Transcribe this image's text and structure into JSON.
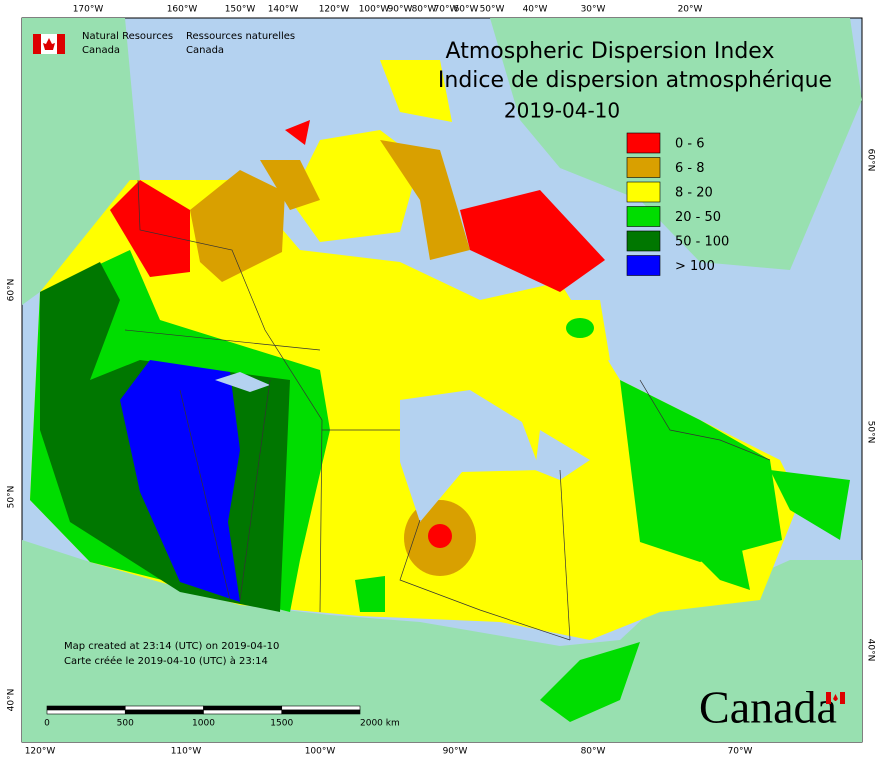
{
  "header": {
    "agency_en_1": "Natural Resources",
    "agency_en_2": "Canada",
    "agency_fr_1": "Ressources naturelles",
    "agency_fr_2": "Canada"
  },
  "title": {
    "line1": "Atmospheric Dispersion Index",
    "line2": "Indice de dispersion atmosphérique",
    "date": "2019-04-10"
  },
  "legend": [
    {
      "label": "0 - 6",
      "color": "#ff0000"
    },
    {
      "label": "6 - 8",
      "color": "#d9a000"
    },
    {
      "label": "8 - 20",
      "color": "#ffff00"
    },
    {
      "label": "20 - 50",
      "color": "#00dd00"
    },
    {
      "label": "50 - 100",
      "color": "#007700"
    },
    {
      "label": "> 100",
      "color": "#0000ff"
    }
  ],
  "top_longitudes": [
    "170°W",
    "160°W",
    "150°W",
    "140°W",
    "120°W",
    "100°W",
    "90°W",
    "80°W",
    "70°W",
    "60°W",
    "50°W",
    "40°W",
    "30°W",
    "20°W"
  ],
  "bottom_longitudes": [
    "120°W",
    "110°W",
    "100°W",
    "90°W",
    "80°W",
    "70°W"
  ],
  "left_latitudes": [
    "60°N",
    "50°N",
    "40°N"
  ],
  "right_latitudes": [
    "60°N",
    "50°N",
    "40°N"
  ],
  "footer": {
    "created_en": "Map created at 23:14 (UTC) on 2019-04-10",
    "created_fr": "Carte créée le 2019-04-10 (UTC) à 23:14"
  },
  "scale_bar": {
    "labels": [
      "0",
      "500",
      "1000",
      "1500",
      "2000 km"
    ]
  },
  "wordmark": "Canada"
}
